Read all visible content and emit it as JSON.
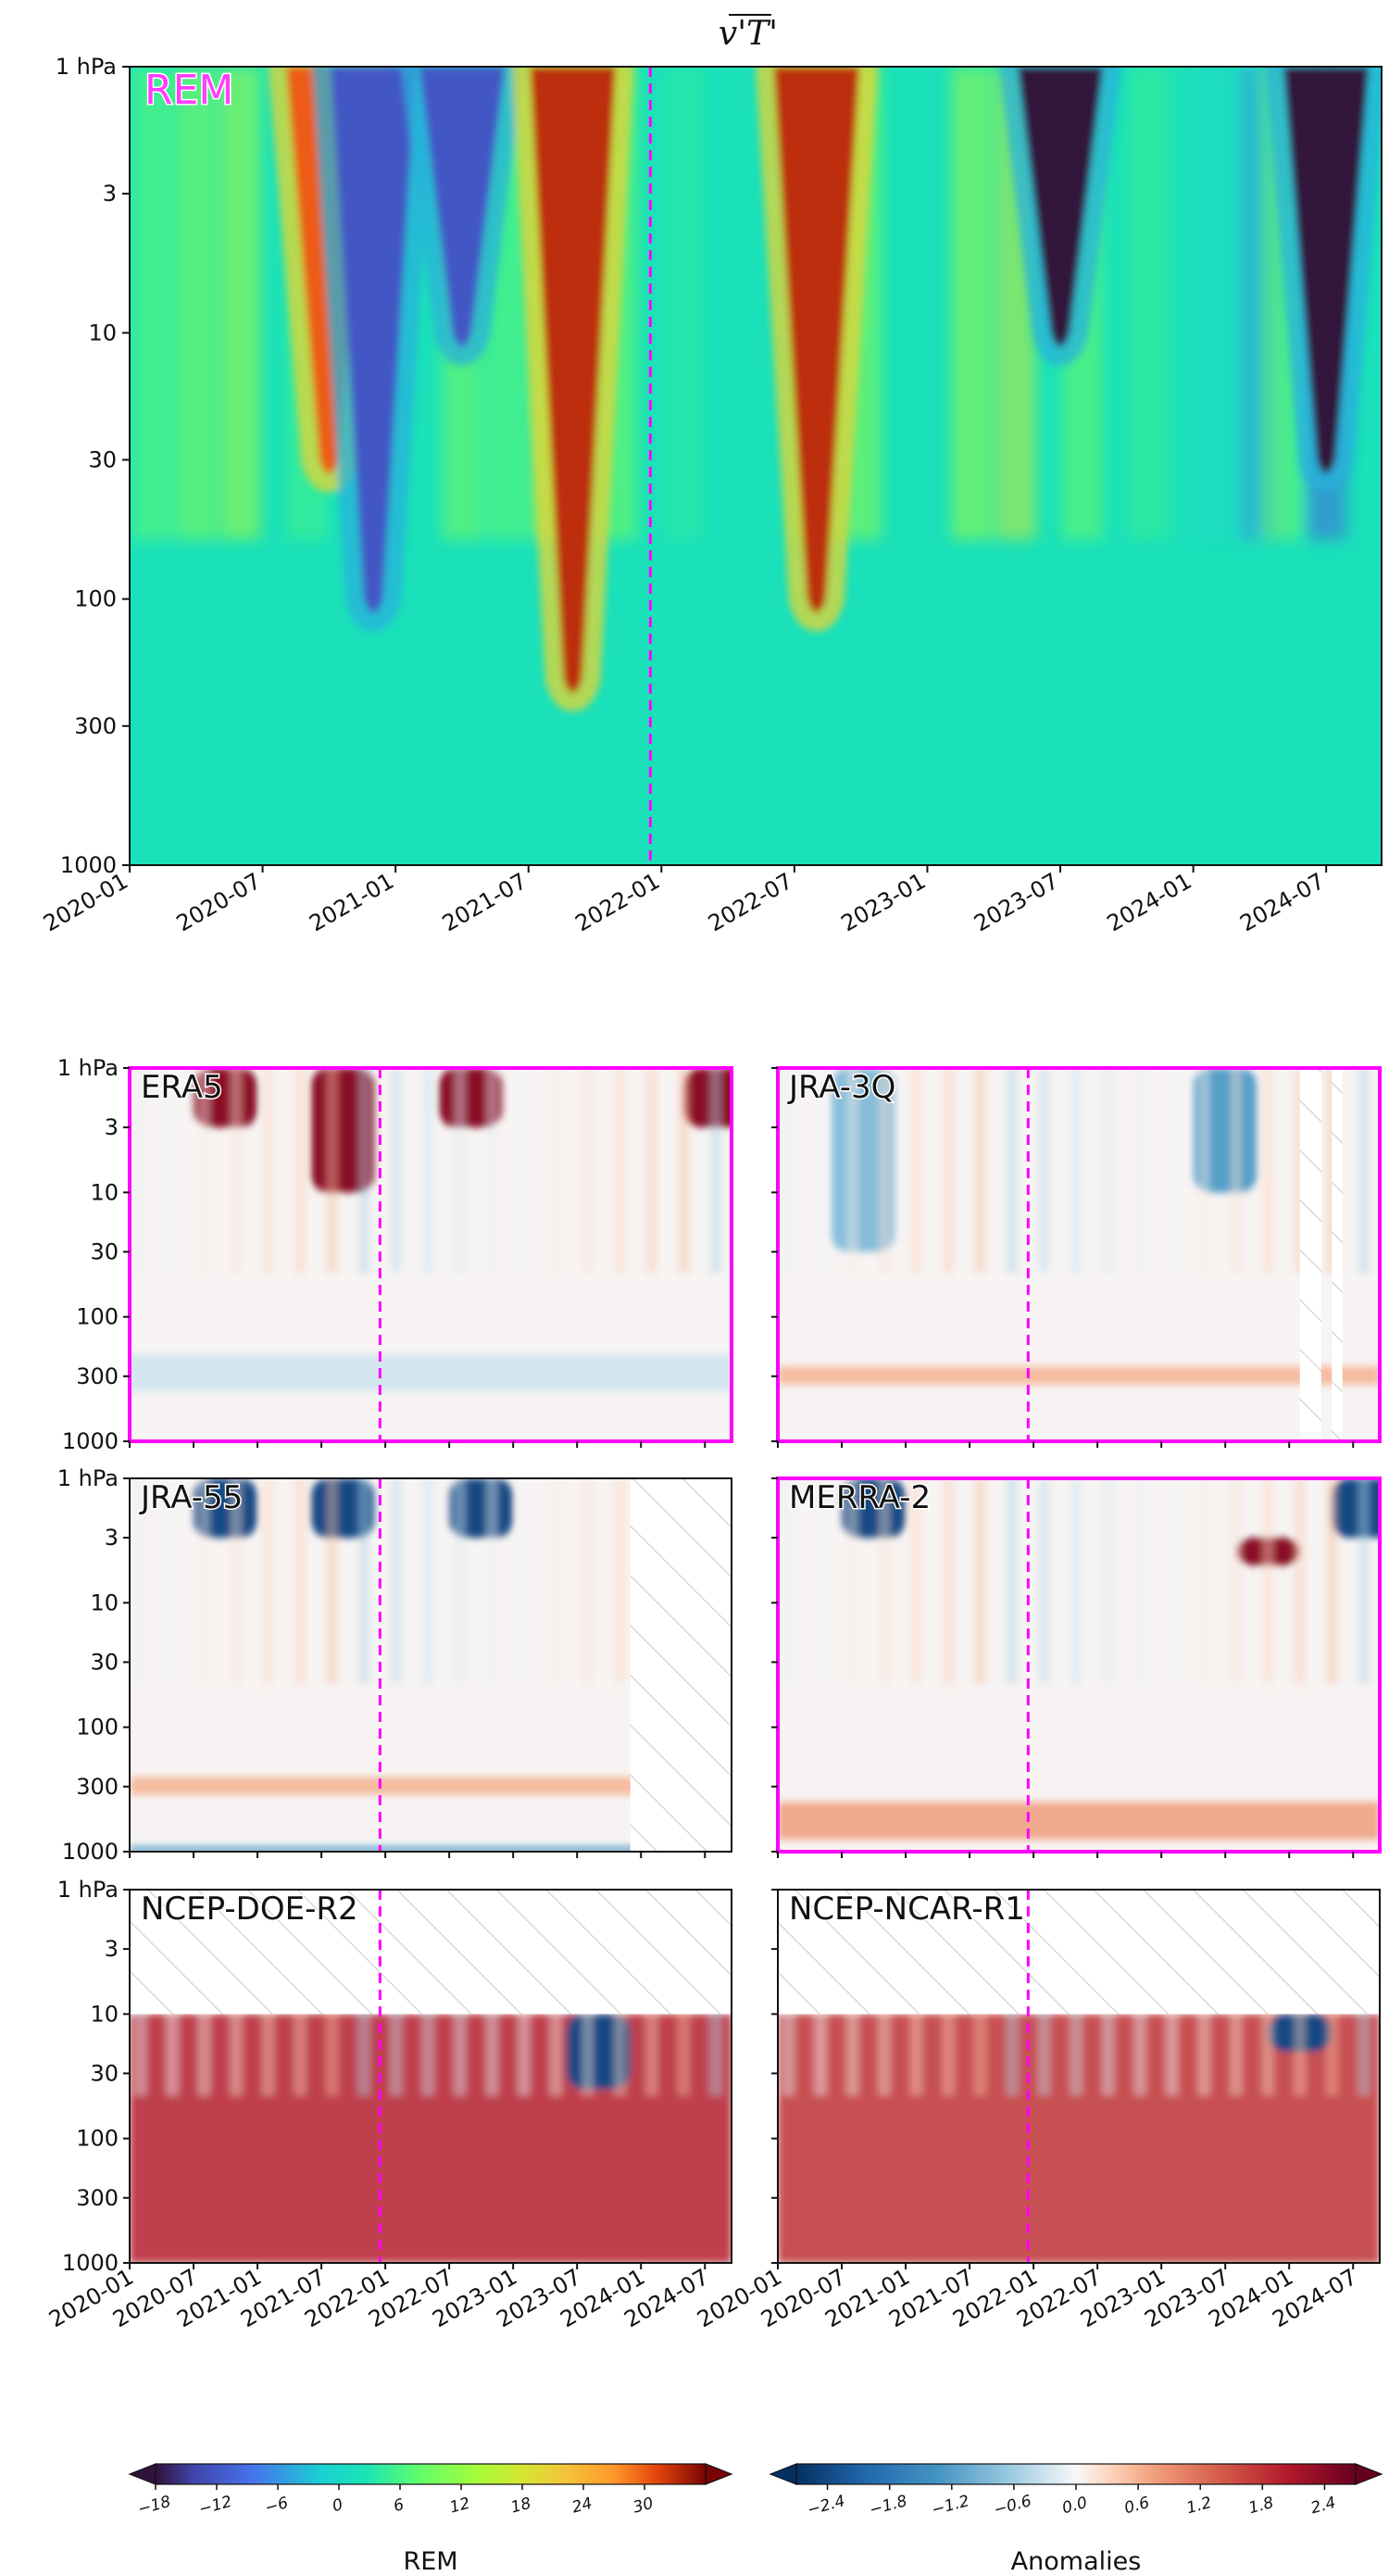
{
  "figure": {
    "title": "v'T'",
    "accent_color": "#ff00ff"
  },
  "chart_data": [
    {
      "type": "heatmap",
      "panel": "REM",
      "label": "REM",
      "x_range": [
        "2020-01",
        "2024-09"
      ],
      "x_ticks": [
        "2020-01",
        "2020-07",
        "2021-01",
        "2021-07",
        "2022-01",
        "2022-07",
        "2023-01",
        "2023-07",
        "2024-01",
        "2024-07"
      ],
      "y_scale": "log",
      "y_range_hPa": [
        1000,
        1
      ],
      "y_ticks": [
        "1 hPa",
        "3",
        "10",
        "30",
        "100",
        "300",
        "1000"
      ],
      "colormap": "turbo",
      "marker_date": "2021-12",
      "features": [
        {
          "date": "2020-10",
          "level_range_hPa": [
            1,
            30
          ],
          "value": 30
        },
        {
          "date": "2020-12",
          "level_range_hPa": [
            1,
            100
          ],
          "value": -12
        },
        {
          "date": "2021-04",
          "level_range_hPa": [
            1,
            10
          ],
          "value": -12
        },
        {
          "date": "2021-09",
          "level_range_hPa": [
            1,
            200
          ],
          "value": 33
        },
        {
          "date": "2022-08",
          "level_range_hPa": [
            1,
            100
          ],
          "value": 33
        },
        {
          "date": "2023-07",
          "level_range_hPa": [
            1,
            10
          ],
          "value": -18
        },
        {
          "date": "2024-07",
          "level_range_hPa": [
            1,
            30
          ],
          "value": -18
        }
      ]
    },
    {
      "type": "heatmap",
      "panel": "ERA5",
      "label": "ERA5",
      "colormap": "RdBu_r",
      "highlight": true,
      "marker_date": "2021-12",
      "features": [
        {
          "date": "2020-10",
          "level_range_hPa": [
            1,
            3
          ],
          "value": 2.4
        },
        {
          "date": "2021-09",
          "level_range_hPa": [
            1,
            10
          ],
          "value": 2.4
        },
        {
          "date": "2022-09",
          "level_range_hPa": [
            1,
            3
          ],
          "value": 2.4
        },
        {
          "date": "2024-08",
          "level_range_hPa": [
            1,
            3
          ],
          "value": 2.4
        },
        {
          "date": "all",
          "level_range_hPa": [
            200,
            400
          ],
          "value": -0.3
        }
      ]
    },
    {
      "type": "heatmap",
      "panel": "JRA-3Q",
      "label": "JRA-3Q",
      "colormap": "RdBu_r",
      "highlight": true,
      "marker_date": "2021-12",
      "missing": [
        [
          "2024-02",
          "2024-03"
        ],
        [
          "2024-05",
          "2024-05"
        ]
      ],
      "features": [
        {
          "date": "2020-09",
          "level_range_hPa": [
            1,
            30
          ],
          "value": -0.8
        },
        {
          "date": "2023-07",
          "level_range_hPa": [
            1,
            10
          ],
          "value": -1.2
        },
        {
          "date": "all",
          "level_range_hPa": [
            250,
            350
          ],
          "value": 0.6
        }
      ]
    },
    {
      "type": "heatmap",
      "panel": "JRA-55",
      "label": "JRA-55",
      "colormap": "RdBu_r",
      "highlight": false,
      "marker_date": "2021-12",
      "missing": [
        [
          "2023-12",
          "2024-09"
        ]
      ],
      "features": [
        {
          "date": "2020-10",
          "level_range_hPa": [
            1,
            3
          ],
          "value": -2.4
        },
        {
          "date": "2021-09",
          "level_range_hPa": [
            1,
            3
          ],
          "value": -2.4
        },
        {
          "date": "2022-10",
          "level_range_hPa": [
            1,
            3
          ],
          "value": -2.4
        },
        {
          "date": "all",
          "level_range_hPa": [
            250,
            350
          ],
          "value": 0.6
        },
        {
          "date": "all",
          "level_range_hPa": [
            900,
            1000
          ],
          "value": -1.2
        }
      ]
    },
    {
      "type": "heatmap",
      "panel": "MERRA-2",
      "label": "MERRA-2",
      "colormap": "RdBu_r",
      "highlight": true,
      "marker_date": "2021-12",
      "features": [
        {
          "date": "2020-10",
          "level_range_hPa": [
            1,
            3
          ],
          "value": -2.4
        },
        {
          "date": "2023-11",
          "level_range_hPa": [
            3,
            5
          ],
          "value": 2.4
        },
        {
          "date": "2024-08",
          "level_range_hPa": [
            1,
            3
          ],
          "value": -2.4
        },
        {
          "date": "all",
          "level_range_hPa": [
            400,
            800
          ],
          "value": 0.8
        }
      ]
    },
    {
      "type": "heatmap",
      "panel": "NCEP-DOE-R2",
      "label": "NCEP-DOE-R2",
      "colormap": "RdBu_r",
      "highlight": false,
      "marker_date": "2021-12",
      "missing_levels_hPa": [
        1,
        10
      ],
      "features": [
        {
          "date": "all",
          "level_range_hPa": [
            10,
            1000
          ],
          "value": 2.0
        },
        {
          "date": "2023-09",
          "level_range_hPa": [
            10,
            40
          ],
          "value": -2.4
        }
      ]
    },
    {
      "type": "heatmap",
      "panel": "NCEP-NCAR-R1",
      "label": "NCEP-NCAR-R1",
      "colormap": "RdBu_r",
      "highlight": false,
      "marker_date": "2021-12",
      "missing_levels_hPa": [
        1,
        10
      ],
      "features": [
        {
          "date": "all",
          "level_range_hPa": [
            10,
            1000
          ],
          "value": 1.8
        },
        {
          "date": "2024-02",
          "level_range_hPa": [
            10,
            20
          ],
          "value": -2.4
        }
      ]
    }
  ],
  "small_x_ticks": [
    "2020-01",
    "2020-07",
    "2021-01",
    "2021-07",
    "2022-01",
    "2022-07",
    "2023-01",
    "2023-07",
    "2024-01",
    "2024-07"
  ],
  "small_y_ticks": [
    "1 hPa",
    "3",
    "10",
    "30",
    "100",
    "300",
    "1000"
  ],
  "colorbars": [
    {
      "title": "REM",
      "ticks": [
        "−18",
        "−12",
        "−6",
        "0",
        "6",
        "12",
        "18",
        "24",
        "30"
      ],
      "colormap": "turbo",
      "range": [
        -18,
        36
      ]
    },
    {
      "title": "Anomalies",
      "ticks": [
        "−2.4",
        "−1.8",
        "−1.2",
        "−0.6",
        "0.0",
        "0.6",
        "1.2",
        "1.8",
        "2.4"
      ],
      "colormap": "RdBu_r",
      "range": [
        -2.7,
        2.7
      ]
    }
  ]
}
